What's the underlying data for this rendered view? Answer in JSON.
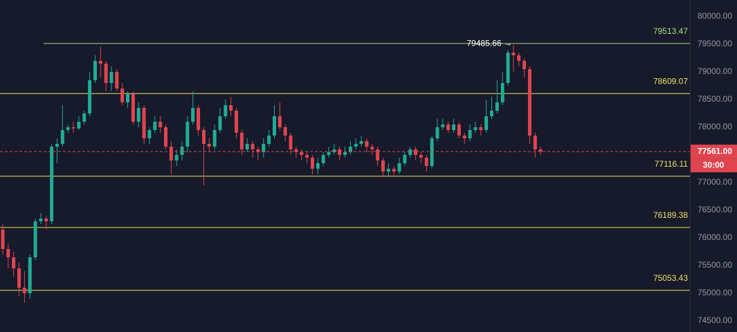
{
  "chart_data": {
    "type": "candlestick",
    "ylim": [
      74300,
      80300
    ],
    "yticks": [
      {
        "value": 74500,
        "label": "74500.00"
      },
      {
        "value": 75000,
        "label": "75000.00"
      },
      {
        "value": 75500,
        "label": "75500.00"
      },
      {
        "value": 76000,
        "label": "76000.00"
      },
      {
        "value": 76500,
        "label": "76500.00"
      },
      {
        "value": 77000,
        "label": "77000.00"
      },
      {
        "value": 77500,
        "label": "77500.00"
      },
      {
        "value": 78000,
        "label": "78000.00"
      },
      {
        "value": 78500,
        "label": "78500.00"
      },
      {
        "value": 79000,
        "label": "79000.00"
      },
      {
        "value": 79500,
        "label": "79500.00"
      },
      {
        "value": 80000,
        "label": "80000.00"
      }
    ],
    "up_color": "#22ab94",
    "down_color": "#e0454f",
    "open": [
      76150,
      75800,
      75650,
      75450,
      75100,
      75000,
      75650,
      76300,
      76350,
      76300,
      77650,
      77700,
      77950,
      78000,
      77980,
      78100,
      78250,
      78850,
      79200,
      79150,
      78800,
      79000,
      78700,
      78450,
      78600,
      78100,
      78350,
      77800,
      77950,
      78100,
      78000,
      77650,
      77400,
      77500,
      77650,
      78100,
      78350,
      77950,
      77700,
      77650,
      77950,
      78200,
      78400,
      78300,
      77900,
      77600,
      77700,
      77600,
      77550,
      77700,
      77850,
      78200,
      78000,
      77850,
      77600,
      77550,
      77500,
      77450,
      77250,
      77350,
      77500,
      77550,
      77600,
      77500,
      77550,
      77650,
      77700,
      77750,
      77650,
      77600,
      77400,
      77200,
      77250,
      77200,
      77350,
      77500,
      77600,
      77500,
      77450,
      77300,
      77800,
      78000,
      78050,
      77950,
      78050,
      77850,
      77800,
      77950,
      78000,
      77950,
      78200,
      78300,
      78450,
      78800,
      79350,
      79300,
      79200,
      79050,
      77850,
      77600
    ],
    "high": [
      76250,
      75900,
      75750,
      75550,
      75400,
      75700,
      76350,
      76450,
      76400,
      77700,
      77800,
      78400,
      78050,
      78100,
      78200,
      78300,
      79000,
      79300,
      79460,
      79200,
      79100,
      79050,
      78800,
      78650,
      78650,
      78450,
      78400,
      78000,
      78200,
      78200,
      78050,
      77750,
      77600,
      77750,
      78200,
      78650,
      78400,
      78000,
      77800,
      78050,
      78350,
      78500,
      78550,
      78350,
      77950,
      77800,
      77750,
      77650,
      77800,
      77950,
      78400,
      78450,
      78050,
      77900,
      77650,
      77600,
      77550,
      77500,
      77450,
      77550,
      77650,
      77700,
      77650,
      77650,
      77750,
      77800,
      77850,
      77800,
      77700,
      77650,
      77450,
      77350,
      77300,
      77450,
      77550,
      77650,
      77650,
      77550,
      77500,
      77850,
      78150,
      78150,
      78100,
      78150,
      78100,
      77900,
      78050,
      78100,
      78050,
      78500,
      78550,
      78850,
      79000,
      79400,
      79485.66,
      79350,
      79250,
      79100,
      77900,
      77650
    ],
    "low": [
      75700,
      75450,
      75300,
      74950,
      74830,
      74900,
      75600,
      76250,
      76150,
      76250,
      77350,
      77650,
      77900,
      77900,
      77950,
      78050,
      78200,
      78800,
      78900,
      78650,
      78650,
      78650,
      78400,
      78350,
      78050,
      78000,
      77700,
      77700,
      77900,
      77900,
      77600,
      77150,
      77300,
      77400,
      77550,
      78050,
      77850,
      76950,
      77550,
      77600,
      77900,
      78150,
      78200,
      77800,
      77500,
      77550,
      77450,
      77400,
      77450,
      77650,
      77800,
      77950,
      77750,
      77500,
      77450,
      77400,
      77350,
      77150,
      77150,
      77300,
      77450,
      77500,
      77400,
      77450,
      77500,
      77600,
      77650,
      77550,
      77500,
      77300,
      77100,
      77100,
      77100,
      77150,
      77300,
      77450,
      77400,
      77350,
      77200,
      77250,
      77750,
      77950,
      77900,
      77900,
      77800,
      77700,
      77750,
      77900,
      77850,
      77900,
      78150,
      78250,
      78400,
      78750,
      79000,
      79100,
      78900,
      77700,
      77450,
      77500
    ],
    "close": [
      75800,
      75650,
      75450,
      75100,
      75000,
      75650,
      76300,
      76350,
      76300,
      77650,
      77700,
      77950,
      78000,
      77980,
      78100,
      78250,
      78850,
      79200,
      79150,
      78800,
      79000,
      78700,
      78450,
      78600,
      78100,
      78350,
      77800,
      77950,
      78100,
      78000,
      77650,
      77400,
      77500,
      77650,
      78100,
      78350,
      77950,
      77700,
      77650,
      77950,
      78200,
      78400,
      78300,
      77900,
      77600,
      77700,
      77600,
      77550,
      77700,
      77850,
      78200,
      78000,
      77850,
      77600,
      77550,
      77500,
      77450,
      77250,
      77350,
      77500,
      77550,
      77600,
      77500,
      77550,
      77650,
      77700,
      77750,
      77650,
      77600,
      77400,
      77200,
      77250,
      77200,
      77350,
      77500,
      77600,
      77500,
      77450,
      77300,
      77800,
      78000,
      78050,
      77950,
      78050,
      77850,
      77800,
      77950,
      78000,
      77950,
      78200,
      78300,
      78450,
      78800,
      79350,
      79300,
      79200,
      79050,
      77850,
      77600,
      77561
    ],
    "levels": [
      {
        "value": 79513.47,
        "color": "#a8e07f"
      },
      {
        "value": 78609.07,
        "color": "#f0e060"
      },
      {
        "value": 77116.11,
        "color": "#f0e060"
      },
      {
        "value": 76189.38,
        "color": "#f0e060"
      },
      {
        "value": 75053.43,
        "color": "#f0e060"
      }
    ],
    "high_annotation": "79485.66 →",
    "last_price": {
      "value": 77561,
      "label": "77561.00",
      "color": "#e0454f"
    },
    "countdown": "30:00"
  }
}
